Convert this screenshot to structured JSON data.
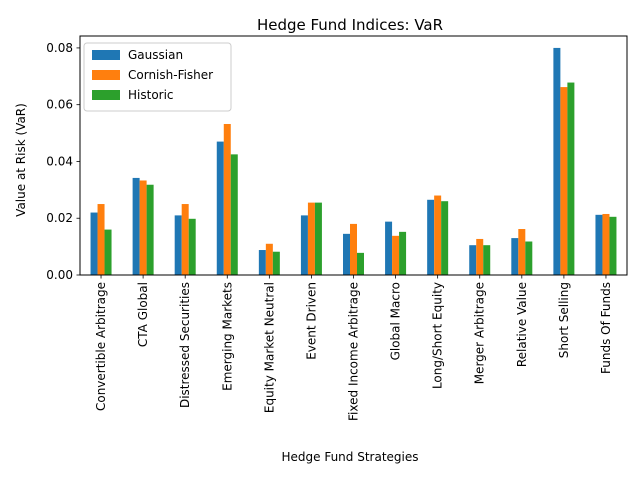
{
  "chart_data": {
    "type": "bar",
    "title": "Hedge Fund Indices: VaR",
    "xlabel": "Hedge Fund Strategies",
    "ylabel": "Value at Risk (VaR)",
    "ylim": [
      0,
      0.0842
    ],
    "yticks": [
      "0.00",
      "0.02",
      "0.04",
      "0.06",
      "0.08"
    ],
    "ytick_values": [
      0,
      0.02,
      0.04,
      0.06,
      0.08
    ],
    "grid": false,
    "legend_position": "top-left",
    "categories": [
      "Convertible Arbitrage",
      "CTA Global",
      "Distressed Securities",
      "Emerging Markets",
      "Equity Market Neutral",
      "Event Driven",
      "Fixed Income Arbitrage",
      "Global Macro",
      "Long/Short Equity",
      "Merger Arbitrage",
      "Relative Value",
      "Short Selling",
      "Funds Of Funds"
    ],
    "series": [
      {
        "name": "Gaussian",
        "color": "#1f77b4",
        "values": [
          0.022,
          0.0342,
          0.021,
          0.047,
          0.0088,
          0.021,
          0.0145,
          0.0188,
          0.0265,
          0.0105,
          0.013,
          0.08,
          0.0212
        ]
      },
      {
        "name": "Cornish-Fisher",
        "color": "#ff7f0e",
        "values": [
          0.025,
          0.0333,
          0.025,
          0.0532,
          0.011,
          0.0255,
          0.018,
          0.0138,
          0.028,
          0.0127,
          0.0162,
          0.0662,
          0.0215
        ]
      },
      {
        "name": "Historic",
        "color": "#2ca02c",
        "values": [
          0.016,
          0.0318,
          0.0198,
          0.0425,
          0.0082,
          0.0255,
          0.0078,
          0.0152,
          0.026,
          0.0105,
          0.0118,
          0.0678,
          0.0205
        ]
      }
    ]
  }
}
